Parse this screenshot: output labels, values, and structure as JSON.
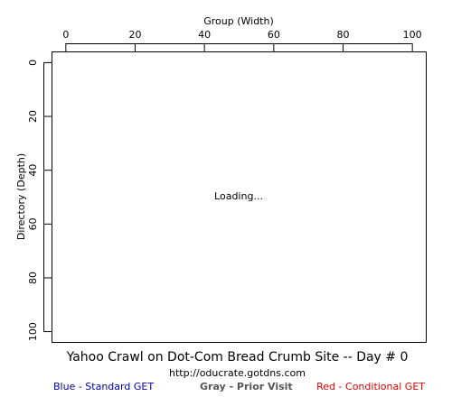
{
  "chart_data": {
    "type": "scatter",
    "title": "Yahoo Crawl on Dot-Com Bread Crumb Site -- Day # 0",
    "subtitle": "http://oducrate.gotdns.com",
    "xlabel": "Group (Width)",
    "ylabel": "Directory (Depth)",
    "x_ticks": [
      0,
      20,
      40,
      60,
      80,
      100
    ],
    "y_ticks": [
      0,
      20,
      40,
      60,
      80,
      100
    ],
    "xlim": [
      -4,
      104
    ],
    "ylim": [
      -4,
      104
    ],
    "x_axis_position": "top",
    "y_axis_inverted": true,
    "grid": false,
    "status_text": "Loading...",
    "series": [],
    "legend": [
      {
        "label": "Blue - Standard GET",
        "color": "#0000aa"
      },
      {
        "label": "Gray - Prior Visit",
        "color": "#555555"
      },
      {
        "label": "Red - Conditional GET",
        "color": "#dd0000"
      }
    ]
  }
}
